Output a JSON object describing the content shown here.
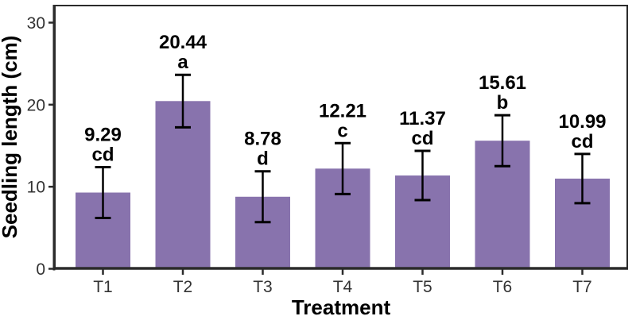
{
  "chart_data": {
    "type": "bar",
    "title": "",
    "xlabel": "Treatment",
    "ylabel": "Seedling length (cm)",
    "categories": [
      "T1",
      "T2",
      "T3",
      "T4",
      "T5",
      "T6",
      "T7"
    ],
    "values": [
      9.29,
      20.44,
      8.78,
      12.21,
      11.37,
      15.61,
      10.99
    ],
    "value_labels": [
      "9.29",
      "20.44",
      "8.78",
      "12.21",
      "11.37",
      "15.61",
      "10.99"
    ],
    "errors": [
      3.1,
      3.2,
      3.1,
      3.1,
      3.0,
      3.1,
      3.0
    ],
    "sig_letters": [
      "cd",
      "a",
      "d",
      "c",
      "cd",
      "b",
      "cd"
    ],
    "yticks": [
      0,
      10,
      20,
      30
    ],
    "ytick_labels": [
      "0",
      "10",
      "20",
      "30"
    ],
    "ylim": [
      0,
      32.2
    ],
    "grid": "off",
    "legend": "none",
    "bar_color": "#8873AD",
    "error_bar_color": "#000000",
    "axis_color": "#2b2b2b",
    "tick_label_color": "#333333",
    "background_color": "#ffffff"
  }
}
